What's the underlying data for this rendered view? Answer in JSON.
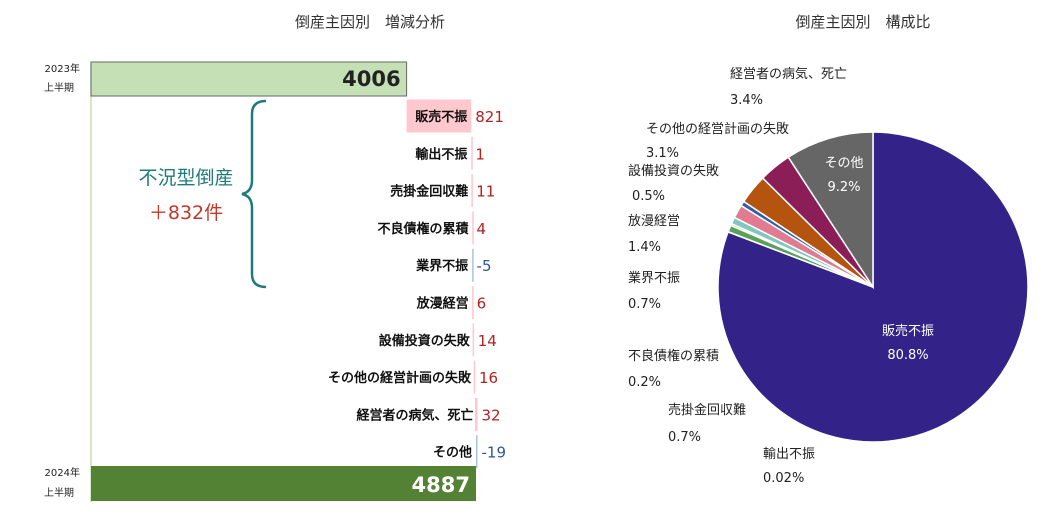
{
  "chart_data": [
    {
      "type": "bar",
      "title": "倒産主因別　増減分析",
      "start": {
        "label_line1": "2023年",
        "label_line2": "上半期",
        "value": 4006,
        "display": "4006",
        "color": "#c5e0b4"
      },
      "end": {
        "label_line1": "2024年",
        "label_line2": "上半期",
        "value": 4887,
        "display": "4887",
        "color": "#548235"
      },
      "items": [
        {
          "label": "販売不振",
          "value": 821,
          "display": "821"
        },
        {
          "label": "輸出不振",
          "value": 1,
          "display": "1"
        },
        {
          "label": "売掛金回収難",
          "value": 11,
          "display": "11"
        },
        {
          "label": "不良債権の累積",
          "value": 4,
          "display": "4"
        },
        {
          "label": "業界不振",
          "value": -5,
          "display": "-5"
        },
        {
          "label": "放漫経営",
          "value": 6,
          "display": "6"
        },
        {
          "label": "設備投資の失敗",
          "value": 14,
          "display": "14"
        },
        {
          "label": "その他の経営計画の失敗",
          "value": 16,
          "display": "16"
        },
        {
          "label": "経営者の病気、死亡",
          "value": 32,
          "display": "32"
        },
        {
          "label": "その他",
          "value": -19,
          "display": "-19"
        }
      ],
      "bracket": {
        "line1": "不況型倒産",
        "line2": "＋832件",
        "color_line1": "#1f7a7a",
        "color_line2": "#c0392b"
      },
      "colors": {
        "increase": "#ffc7ce",
        "decrease": "#a9c4e0",
        "pos_text": "#b22222",
        "neg_text": "#2f5597"
      }
    },
    {
      "type": "pie",
      "title": "倒産主因別　構成比",
      "slices": [
        {
          "label": "販売不振",
          "value": 80.8,
          "display": "80.8%",
          "color": "#332288"
        },
        {
          "label": "輸出不振",
          "value": 0.02,
          "display": "0.02%",
          "color": "#2d6a8f"
        },
        {
          "label": "売掛金回収難",
          "value": 0.7,
          "display": "0.7%",
          "color": "#5aa05a"
        },
        {
          "label": "不良債権の累積",
          "value": 0.2,
          "display": "0.2%",
          "color": "#9acd32"
        },
        {
          "label": "業界不振",
          "value": 0.7,
          "display": "0.7%",
          "color": "#7fc7c0"
        },
        {
          "label": "放漫経営",
          "value": 1.4,
          "display": "1.4%",
          "color": "#e07b91"
        },
        {
          "label": "設備投資の失敗",
          "value": 0.5,
          "display": "0.5%",
          "color": "#2e5fa8"
        },
        {
          "label": "その他の経営計画の失敗",
          "value": 3.1,
          "display": "3.1%",
          "color": "#b5540f"
        },
        {
          "label": "経営者の病気、死亡",
          "value": 3.4,
          "display": "3.4%",
          "color": "#8b1e57"
        },
        {
          "label": "その他",
          "value": 9.2,
          "display": "9.2%",
          "color": "#666666"
        }
      ]
    }
  ]
}
